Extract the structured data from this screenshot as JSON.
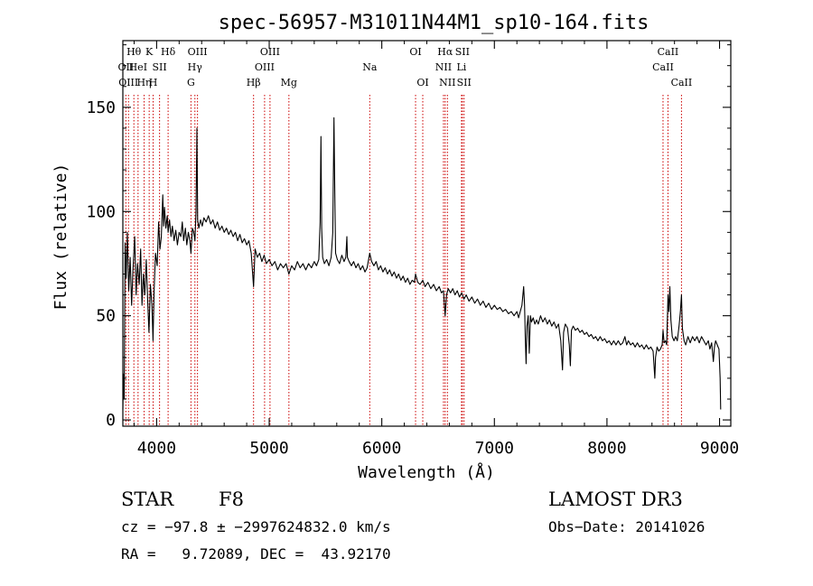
{
  "chart_data": {
    "type": "line",
    "title": "spec-56957-M31011N44M1_sp10-164.fits",
    "xlabel": "Wavelength (Å)",
    "ylabel": "Flux (relative)",
    "xlim": [
      3700,
      9100
    ],
    "ylim": [
      -3,
      182
    ],
    "x_ticks": [
      {
        "value": 4000,
        "label": "4000"
      },
      {
        "value": 5000,
        "label": "5000"
      },
      {
        "value": 6000,
        "label": "6000"
      },
      {
        "value": 7000,
        "label": "7000"
      },
      {
        "value": 8000,
        "label": "8000"
      },
      {
        "value": 9000,
        "label": "9000"
      }
    ],
    "y_ticks": [
      {
        "value": 0,
        "label": "0"
      },
      {
        "value": 50,
        "label": "50"
      },
      {
        "value": 100,
        "label": "100"
      },
      {
        "value": 150,
        "label": "150"
      }
    ],
    "grid": false,
    "line_color": "#000000",
    "marker_color": "#cc0000",
    "spectral_lines": [
      {
        "wavelength": 3727,
        "label": "OII",
        "row": 1
      },
      {
        "wavelength": 3750,
        "label": "OIII",
        "row": 2
      },
      {
        "wavelength": 3798,
        "label": "Hθ",
        "row": 0
      },
      {
        "wavelength": 3835,
        "label": "HeI",
        "row": 1
      },
      {
        "wavelength": 3889,
        "label": "Hη",
        "row": 2
      },
      {
        "wavelength": 3934,
        "label": "K",
        "row": 0
      },
      {
        "wavelength": 3969,
        "label": "H",
        "row": 2
      },
      {
        "wavelength": 4026,
        "label": "SII",
        "row": 1
      },
      {
        "wavelength": 4102,
        "label": "Hδ",
        "row": 0
      },
      {
        "wavelength": 4305,
        "label": "G",
        "row": 2
      },
      {
        "wavelength": 4340,
        "label": "Hγ",
        "row": 1
      },
      {
        "wavelength": 4363,
        "label": "OIII",
        "row": 0
      },
      {
        "wavelength": 4861,
        "label": "Hβ",
        "row": 2
      },
      {
        "wavelength": 4959,
        "label": "OIII",
        "row": 1
      },
      {
        "wavelength": 5007,
        "label": "OIII",
        "row": 0
      },
      {
        "wavelength": 5175,
        "label": "Mg",
        "row": 2
      },
      {
        "wavelength": 5893,
        "label": "Na",
        "row": 1
      },
      {
        "wavelength": 6300,
        "label": "OI",
        "row": 0
      },
      {
        "wavelength": 6364,
        "label": "OI",
        "row": 2
      },
      {
        "wavelength": 6548,
        "label": "NII",
        "row": 1
      },
      {
        "wavelength": 6563,
        "label": "Hα",
        "row": 0
      },
      {
        "wavelength": 6583,
        "label": "NII",
        "row": 2
      },
      {
        "wavelength": 6708,
        "label": "Li",
        "row": 1
      },
      {
        "wavelength": 6716,
        "label": "SII",
        "row": 0
      },
      {
        "wavelength": 6731,
        "label": "SII",
        "row": 2
      },
      {
        "wavelength": 8498,
        "label": "CaII",
        "row": 1
      },
      {
        "wavelength": 8542,
        "label": "CaII",
        "row": 0
      },
      {
        "wavelength": 8662,
        "label": "CaII",
        "row": 2
      }
    ],
    "spectrum": [
      [
        3700,
        5
      ],
      [
        3705,
        22
      ],
      [
        3712,
        10
      ],
      [
        3720,
        85
      ],
      [
        3730,
        68
      ],
      [
        3740,
        90
      ],
      [
        3752,
        62
      ],
      [
        3765,
        78
      ],
      [
        3778,
        55
      ],
      [
        3790,
        72
      ],
      [
        3805,
        88
      ],
      [
        3818,
        60
      ],
      [
        3830,
        75
      ],
      [
        3845,
        65
      ],
      [
        3858,
        82
      ],
      [
        3870,
        55
      ],
      [
        3882,
        70
      ],
      [
        3895,
        60
      ],
      [
        3908,
        77
      ],
      [
        3920,
        58
      ],
      [
        3932,
        42
      ],
      [
        3945,
        65
      ],
      [
        3958,
        55
      ],
      [
        3968,
        38
      ],
      [
        3978,
        62
      ],
      [
        3990,
        80
      ],
      [
        4005,
        74
      ],
      [
        4018,
        95
      ],
      [
        4030,
        82
      ],
      [
        4042,
        88
      ],
      [
        4055,
        108
      ],
      [
        4062,
        93
      ],
      [
        4070,
        102
      ],
      [
        4082,
        92
      ],
      [
        4095,
        98
      ],
      [
        4102,
        90
      ],
      [
        4115,
        96
      ],
      [
        4128,
        88
      ],
      [
        4140,
        93
      ],
      [
        4155,
        86
      ],
      [
        4170,
        91
      ],
      [
        4185,
        84
      ],
      [
        4200,
        90
      ],
      [
        4215,
        88
      ],
      [
        4228,
        95
      ],
      [
        4240,
        86
      ],
      [
        4255,
        92
      ],
      [
        4268,
        84
      ],
      [
        4282,
        90
      ],
      [
        4295,
        86
      ],
      [
        4305,
        80
      ],
      [
        4318,
        92
      ],
      [
        4330,
        90
      ],
      [
        4340,
        86
      ],
      [
        4350,
        100
      ],
      [
        4358,
        140
      ],
      [
        4364,
        96
      ],
      [
        4375,
        92
      ],
      [
        4390,
        96
      ],
      [
        4405,
        93
      ],
      [
        4420,
        97
      ],
      [
        4440,
        95
      ],
      [
        4460,
        98
      ],
      [
        4480,
        94
      ],
      [
        4500,
        96
      ],
      [
        4520,
        92
      ],
      [
        4540,
        95
      ],
      [
        4560,
        91
      ],
      [
        4580,
        93
      ],
      [
        4600,
        90
      ],
      [
        4620,
        92
      ],
      [
        4640,
        89
      ],
      [
        4660,
        91
      ],
      [
        4680,
        88
      ],
      [
        4700,
        90
      ],
      [
        4720,
        86
      ],
      [
        4740,
        89
      ],
      [
        4760,
        85
      ],
      [
        4780,
        87
      ],
      [
        4800,
        84
      ],
      [
        4820,
        86
      ],
      [
        4840,
        80
      ],
      [
        4861,
        64
      ],
      [
        4875,
        82
      ],
      [
        4895,
        78
      ],
      [
        4915,
        80
      ],
      [
        4935,
        76
      ],
      [
        4955,
        79
      ],
      [
        4975,
        75
      ],
      [
        5000,
        77
      ],
      [
        5025,
        74
      ],
      [
        5050,
        76
      ],
      [
        5075,
        72
      ],
      [
        5100,
        75
      ],
      [
        5125,
        73
      ],
      [
        5150,
        75
      ],
      [
        5175,
        70
      ],
      [
        5200,
        74
      ],
      [
        5225,
        72
      ],
      [
        5250,
        76
      ],
      [
        5275,
        73
      ],
      [
        5300,
        75
      ],
      [
        5325,
        72
      ],
      [
        5350,
        75
      ],
      [
        5375,
        73
      ],
      [
        5400,
        76
      ],
      [
        5420,
        74
      ],
      [
        5440,
        77
      ],
      [
        5452,
        95
      ],
      [
        5460,
        136
      ],
      [
        5466,
        92
      ],
      [
        5475,
        78
      ],
      [
        5490,
        75
      ],
      [
        5510,
        77
      ],
      [
        5530,
        74
      ],
      [
        5550,
        78
      ],
      [
        5565,
        90
      ],
      [
        5575,
        145
      ],
      [
        5582,
        110
      ],
      [
        5590,
        80
      ],
      [
        5605,
        77
      ],
      [
        5625,
        75
      ],
      [
        5645,
        79
      ],
      [
        5665,
        76
      ],
      [
        5680,
        78
      ],
      [
        5690,
        88
      ],
      [
        5695,
        78
      ],
      [
        5710,
        76
      ],
      [
        5730,
        74
      ],
      [
        5750,
        76
      ],
      [
        5770,
        73
      ],
      [
        5790,
        75
      ],
      [
        5810,
        72
      ],
      [
        5830,
        74
      ],
      [
        5850,
        71
      ],
      [
        5870,
        73
      ],
      [
        5893,
        80
      ],
      [
        5910,
        76
      ],
      [
        5930,
        74
      ],
      [
        5950,
        76
      ],
      [
        5970,
        72
      ],
      [
        5990,
        74
      ],
      [
        6010,
        71
      ],
      [
        6030,
        73
      ],
      [
        6050,
        70
      ],
      [
        6070,
        72
      ],
      [
        6090,
        69
      ],
      [
        6110,
        71
      ],
      [
        6130,
        68
      ],
      [
        6150,
        70
      ],
      [
        6170,
        67
      ],
      [
        6190,
        69
      ],
      [
        6210,
        66
      ],
      [
        6230,
        68
      ],
      [
        6250,
        65
      ],
      [
        6270,
        67
      ],
      [
        6290,
        66
      ],
      [
        6300,
        70
      ],
      [
        6320,
        66
      ],
      [
        6340,
        65
      ],
      [
        6364,
        67
      ],
      [
        6385,
        64
      ],
      [
        6410,
        66
      ],
      [
        6435,
        63
      ],
      [
        6460,
        65
      ],
      [
        6485,
        62
      ],
      [
        6510,
        64
      ],
      [
        6530,
        61
      ],
      [
        6548,
        62
      ],
      [
        6563,
        50
      ],
      [
        6575,
        60
      ],
      [
        6590,
        63
      ],
      [
        6610,
        61
      ],
      [
        6630,
        63
      ],
      [
        6650,
        60
      ],
      [
        6670,
        62
      ],
      [
        6690,
        59
      ],
      [
        6710,
        61
      ],
      [
        6730,
        58
      ],
      [
        6750,
        60
      ],
      [
        6775,
        57
      ],
      [
        6800,
        59
      ],
      [
        6825,
        56
      ],
      [
        6850,
        58
      ],
      [
        6875,
        55
      ],
      [
        6900,
        57
      ],
      [
        6925,
        54
      ],
      [
        6950,
        56
      ],
      [
        6975,
        53
      ],
      [
        7000,
        55
      ],
      [
        7025,
        53
      ],
      [
        7050,
        54
      ],
      [
        7075,
        52
      ],
      [
        7100,
        53
      ],
      [
        7125,
        51
      ],
      [
        7150,
        52
      ],
      [
        7175,
        50
      ],
      [
        7200,
        52
      ],
      [
        7215,
        49
      ],
      [
        7230,
        52
      ],
      [
        7245,
        55
      ],
      [
        7260,
        64
      ],
      [
        7268,
        55
      ],
      [
        7275,
        38
      ],
      [
        7282,
        27
      ],
      [
        7290,
        45
      ],
      [
        7300,
        50
      ],
      [
        7310,
        32
      ],
      [
        7320,
        50
      ],
      [
        7330,
        47
      ],
      [
        7345,
        49
      ],
      [
        7360,
        46
      ],
      [
        7375,
        48
      ],
      [
        7390,
        46
      ],
      [
        7410,
        50
      ],
      [
        7430,
        47
      ],
      [
        7450,
        49
      ],
      [
        7470,
        46
      ],
      [
        7490,
        48
      ],
      [
        7510,
        45
      ],
      [
        7530,
        47
      ],
      [
        7550,
        44
      ],
      [
        7570,
        46
      ],
      [
        7590,
        38
      ],
      [
        7605,
        24
      ],
      [
        7615,
        42
      ],
      [
        7630,
        46
      ],
      [
        7650,
        44
      ],
      [
        7665,
        36
      ],
      [
        7675,
        26
      ],
      [
        7685,
        43
      ],
      [
        7700,
        45
      ],
      [
        7720,
        43
      ],
      [
        7740,
        44
      ],
      [
        7760,
        42
      ],
      [
        7780,
        43
      ],
      [
        7800,
        41
      ],
      [
        7820,
        42
      ],
      [
        7840,
        40
      ],
      [
        7860,
        41
      ],
      [
        7880,
        39
      ],
      [
        7900,
        40
      ],
      [
        7920,
        38
      ],
      [
        7940,
        40
      ],
      [
        7960,
        38
      ],
      [
        7980,
        39
      ],
      [
        8000,
        37
      ],
      [
        8020,
        38
      ],
      [
        8040,
        36
      ],
      [
        8060,
        38
      ],
      [
        8080,
        36
      ],
      [
        8100,
        38
      ],
      [
        8120,
        36
      ],
      [
        8140,
        37
      ],
      [
        8160,
        40
      ],
      [
        8175,
        36
      ],
      [
        8190,
        38
      ],
      [
        8210,
        36
      ],
      [
        8230,
        37
      ],
      [
        8250,
        35
      ],
      [
        8270,
        37
      ],
      [
        8290,
        35
      ],
      [
        8310,
        36
      ],
      [
        8330,
        34
      ],
      [
        8350,
        36
      ],
      [
        8370,
        34
      ],
      [
        8390,
        35
      ],
      [
        8410,
        33
      ],
      [
        8425,
        20
      ],
      [
        8432,
        30
      ],
      [
        8445,
        35
      ],
      [
        8460,
        33
      ],
      [
        8475,
        34
      ],
      [
        8490,
        36
      ],
      [
        8498,
        43
      ],
      [
        8508,
        37
      ],
      [
        8520,
        38
      ],
      [
        8530,
        36
      ],
      [
        8542,
        60
      ],
      [
        8550,
        52
      ],
      [
        8558,
        64
      ],
      [
        8568,
        48
      ],
      [
        8580,
        40
      ],
      [
        8595,
        38
      ],
      [
        8610,
        40
      ],
      [
        8625,
        38
      ],
      [
        8640,
        45
      ],
      [
        8652,
        52
      ],
      [
        8662,
        60
      ],
      [
        8670,
        44
      ],
      [
        8685,
        38
      ],
      [
        8700,
        36
      ],
      [
        8720,
        40
      ],
      [
        8740,
        37
      ],
      [
        8760,
        40
      ],
      [
        8780,
        38
      ],
      [
        8800,
        40
      ],
      [
        8820,
        37
      ],
      [
        8840,
        40
      ],
      [
        8860,
        38
      ],
      [
        8880,
        36
      ],
      [
        8900,
        38
      ],
      [
        8915,
        34
      ],
      [
        8930,
        37
      ],
      [
        8945,
        28
      ],
      [
        8955,
        35
      ],
      [
        8965,
        38
      ],
      [
        8980,
        36
      ],
      [
        8995,
        34
      ],
      [
        9005,
        20
      ],
      [
        9010,
        5
      ]
    ]
  },
  "info": {
    "class": "STAR",
    "subclass": "F8",
    "survey": "LAMOST DR3",
    "cz": "cz = −97.8 ± −2997624832.0 km/s",
    "obs_date": "Obs−Date: 20141026",
    "radec": "RA =   9.72089, DEC =  43.92170"
  }
}
